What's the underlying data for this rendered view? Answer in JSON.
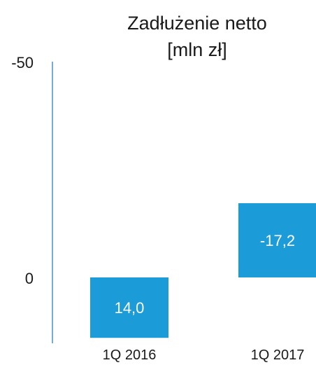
{
  "chart_data": {
    "type": "bar",
    "title_lines": [
      "Zadłużenie netto",
      "[mln zł]"
    ],
    "categories": [
      "1Q 2016",
      "1Q 2017"
    ],
    "series": [
      {
        "values": [
          14.0,
          -17.2
        ],
        "data_labels": [
          "14,0",
          "-17,2"
        ]
      }
    ],
    "yaxis": {
      "inverted": true,
      "ylim": [
        -50,
        14
      ],
      "ticks": [
        -50,
        0
      ],
      "tick_labels": [
        "-50",
        "0"
      ]
    },
    "grid": false,
    "legend": "none",
    "colors": {
      "bar": "#1B9BD7",
      "axis": "#2C7FC5",
      "bar_label": "#ffffff",
      "text": "#1a1a1a"
    }
  }
}
